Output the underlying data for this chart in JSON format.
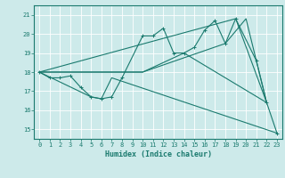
{
  "xlabel": "Humidex (Indice chaleur)",
  "bg_color": "#cdeaea",
  "grid_color": "#ffffff",
  "line_color": "#1a7a6e",
  "xlim": [
    -0.5,
    23.5
  ],
  "ylim": [
    14.5,
    21.5
  ],
  "yticks": [
    15,
    16,
    17,
    18,
    19,
    20,
    21
  ],
  "xticks": [
    0,
    1,
    2,
    3,
    4,
    5,
    6,
    7,
    8,
    9,
    10,
    11,
    12,
    13,
    14,
    15,
    16,
    17,
    18,
    19,
    20,
    21,
    22,
    23
  ],
  "lines": [
    {
      "x": [
        0,
        1,
        2,
        3,
        4,
        5,
        6,
        7,
        8,
        10,
        11,
        12,
        13,
        14,
        15,
        16,
        17,
        18,
        19,
        21,
        22,
        23
      ],
      "y": [
        18,
        17.7,
        17.7,
        17.8,
        17.2,
        16.7,
        16.6,
        16.7,
        17.7,
        19.9,
        19.9,
        20.3,
        19.0,
        19.0,
        19.3,
        20.2,
        20.7,
        19.5,
        20.8,
        18.6,
        16.4,
        14.8
      ]
    },
    {
      "x": [
        0,
        19,
        22
      ],
      "y": [
        18,
        20.8,
        16.4
      ]
    },
    {
      "x": [
        0,
        10,
        18,
        20,
        22
      ],
      "y": [
        18,
        18.0,
        19.5,
        20.8,
        16.4
      ]
    },
    {
      "x": [
        0,
        10,
        14,
        22
      ],
      "y": [
        18,
        18.0,
        19.0,
        16.4
      ]
    },
    {
      "x": [
        0,
        5,
        6,
        7,
        23
      ],
      "y": [
        18,
        16.7,
        16.6,
        17.7,
        14.8
      ]
    }
  ]
}
